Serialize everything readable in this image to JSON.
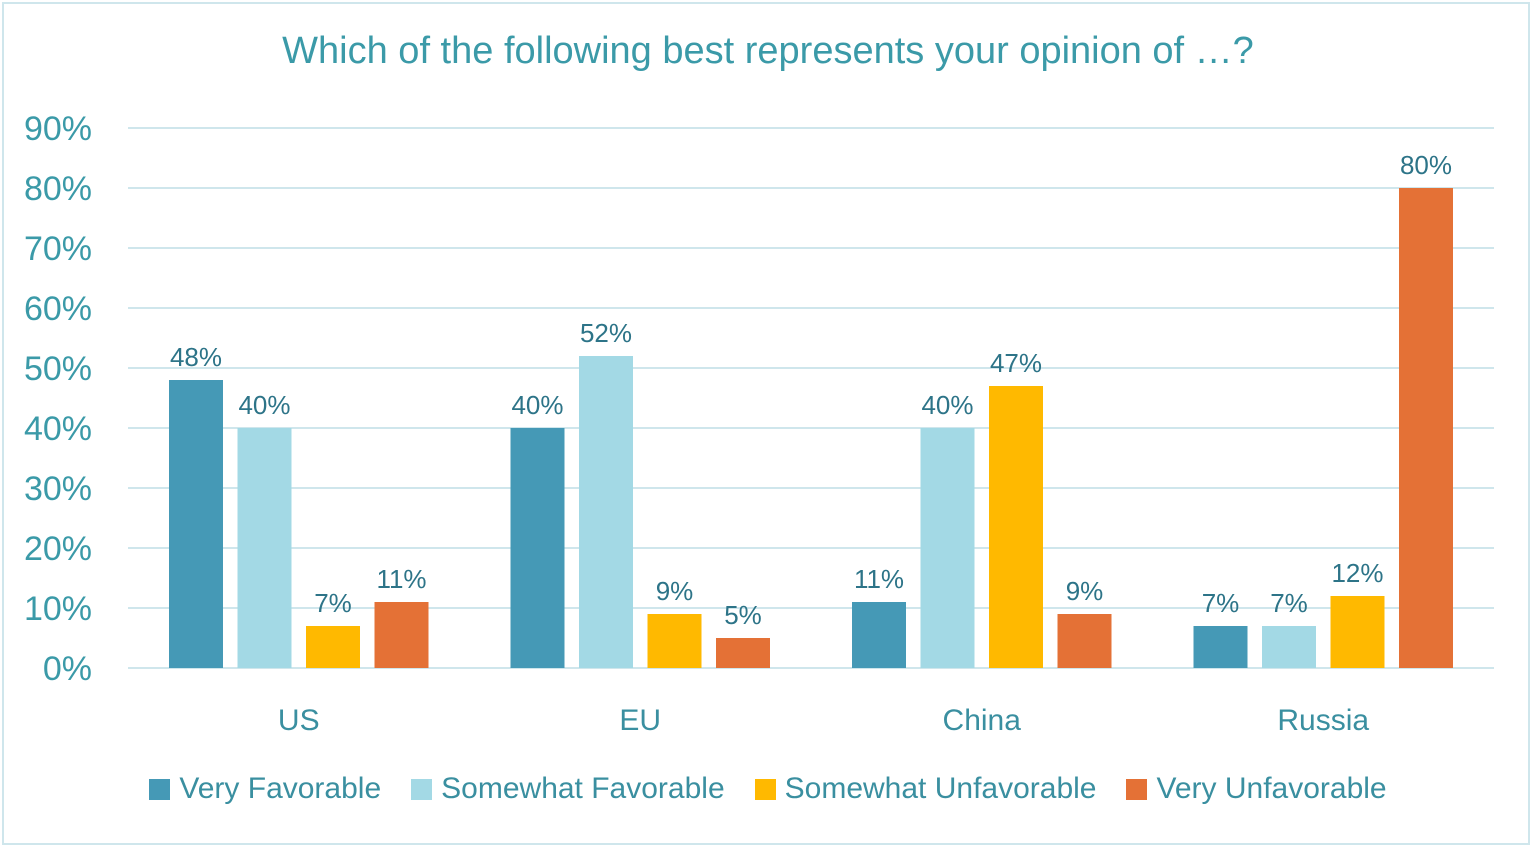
{
  "chart_data": {
    "type": "bar",
    "title": "Which of the following best represents your opinion of …?",
    "xlabel": "",
    "ylabel": "",
    "ylim": [
      0,
      90
    ],
    "ytick_step": 10,
    "ytick_format": "percent",
    "grid": true,
    "legend_position": "bottom",
    "categories": [
      "US",
      "EU",
      "China",
      "Russia"
    ],
    "series": [
      {
        "name": "Very Favorable",
        "color": "#4599b6",
        "values": [
          48,
          40,
          11,
          7
        ]
      },
      {
        "name": "Somewhat Favorable",
        "color": "#a3d9e5",
        "values": [
          40,
          52,
          40,
          7
        ]
      },
      {
        "name": "Somewhat Unfavorable",
        "color": "#ffb900",
        "values": [
          7,
          9,
          47,
          12
        ]
      },
      {
        "name": "Very Unfavorable",
        "color": "#e47136",
        "values": [
          11,
          5,
          9,
          80
        ]
      }
    ],
    "data_labels": true
  },
  "colors": {
    "title": "#3b9aa8",
    "axis_text": "#3b9aa8",
    "category_text": "#3a8fa0",
    "data_label": "#2d7488",
    "grid": "#cfe6ec"
  }
}
